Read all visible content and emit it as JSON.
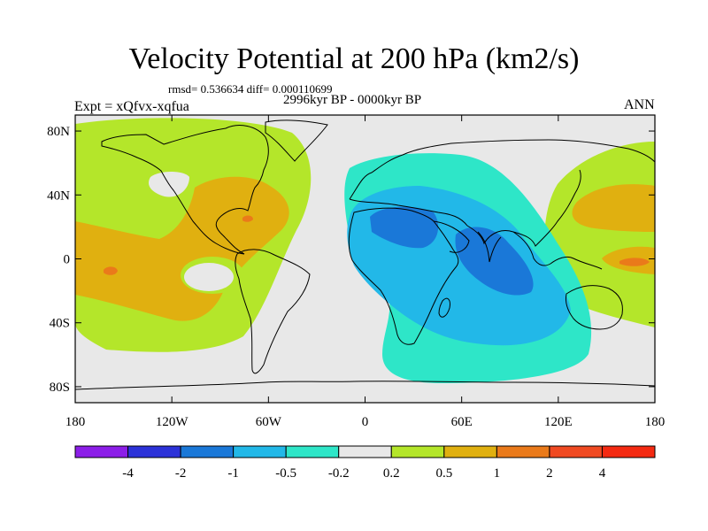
{
  "title": "Velocity Potential at 200 hPa (km2/s)",
  "stats_text": "rmsd= 0.536634 diff= 0.000110699",
  "period_text": "2996kyr BP - 0000kyr BP",
  "experiment_label": "Expt = xQfvx-xqfua",
  "season_label": "ANN",
  "map": {
    "lon_range": [
      -180,
      180
    ],
    "lat_range": [
      -90,
      90
    ],
    "lat_tick_labels": [
      {
        "label": "80N",
        "lat": 80
      },
      {
        "label": "40N",
        "lat": 40
      },
      {
        "label": "0",
        "lat": 0
      },
      {
        "label": "40S",
        "lat": -40
      },
      {
        "label": "80S",
        "lat": -80
      }
    ],
    "lon_tick_labels": [
      {
        "label": "180",
        "lon": -180
      },
      {
        "label": "120W",
        "lon": -120
      },
      {
        "label": "60W",
        "lon": -60
      },
      {
        "label": "0",
        "lon": 0
      },
      {
        "label": "60E",
        "lon": 60
      },
      {
        "label": "120E",
        "lon": 120
      },
      {
        "label": "180",
        "lon": 180
      }
    ]
  },
  "colorbar": {
    "colors": [
      "#8c1ee8",
      "#2c32d8",
      "#1a78d8",
      "#22b8e8",
      "#2ee6c8",
      "#e8e8e8",
      "#b4e62a",
      "#e0b010",
      "#ea7a1a",
      "#f04a22",
      "#f42a12"
    ],
    "labels": [
      "-4",
      "-2",
      "-1",
      "-0.5",
      "-0.2",
      "0.2",
      "0.5",
      "1",
      "2",
      "4"
    ]
  },
  "field_colors": {
    "background": "#e8e8e8",
    "pos_weak": "#b4e62a",
    "pos_mid": "#e0b010",
    "pos_strong": "#ea7a1a",
    "neg_weak": "#2ee6c8",
    "neg_mid": "#22b8e8",
    "neg_strong": "#1a78d8"
  }
}
